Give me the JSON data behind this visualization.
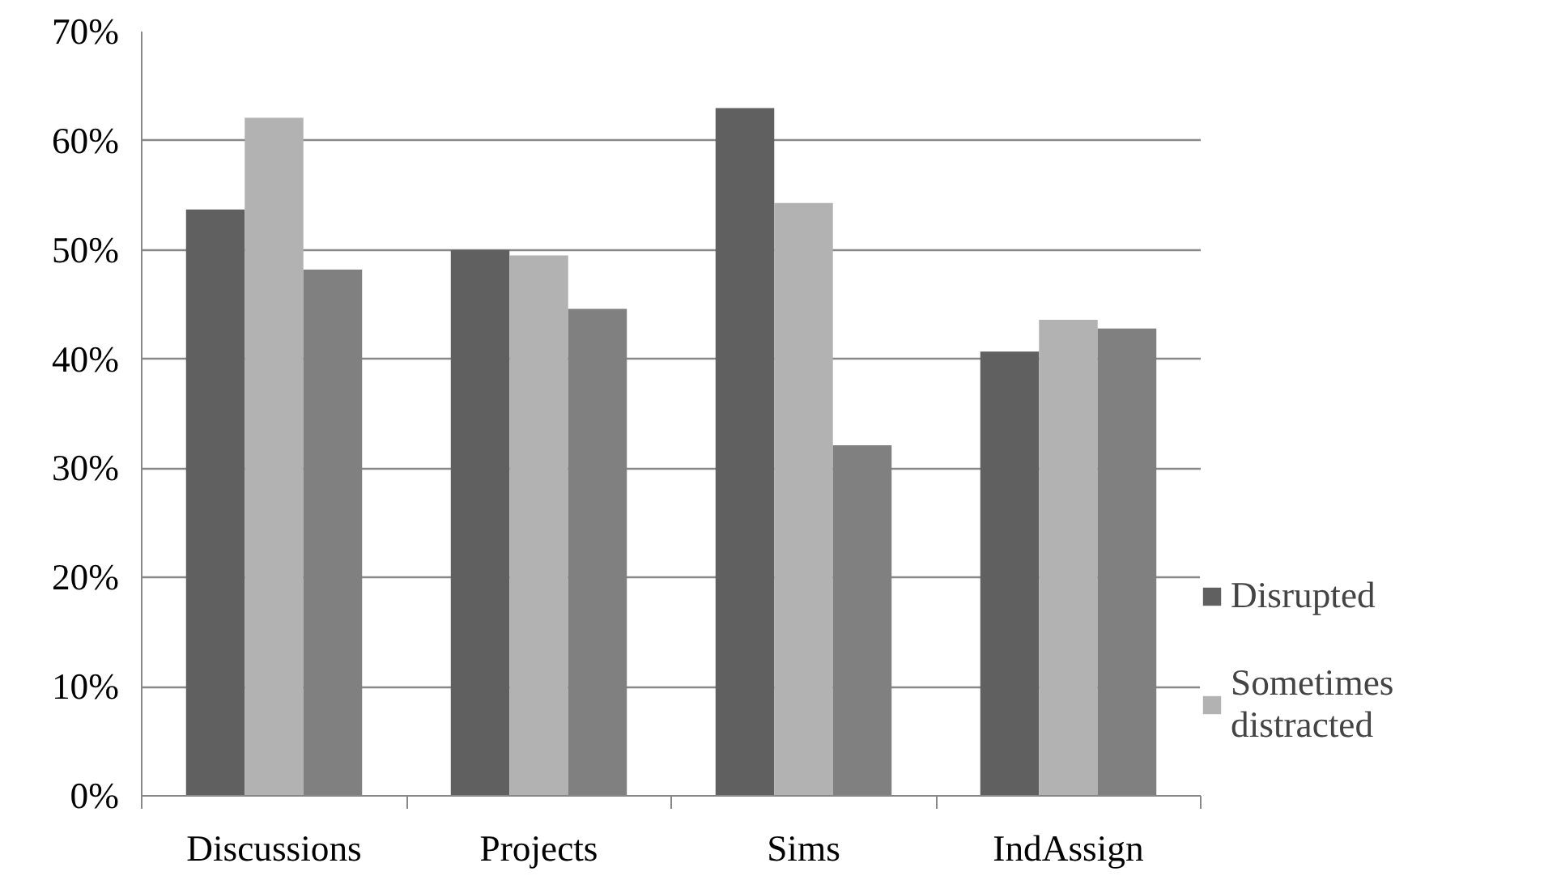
{
  "chart_data": {
    "type": "bar",
    "categories": [
      "Discussions",
      "Projects",
      "Sims",
      "IndAssign"
    ],
    "series": [
      {
        "name": "Disrupted",
        "color": "#606060",
        "values": [
          53.7,
          50.0,
          63.0,
          40.7
        ]
      },
      {
        "name": "Sometimes distracted",
        "color": "#b2b2b2",
        "values": [
          62.1,
          49.5,
          54.3,
          43.6
        ]
      },
      {
        "color": "#808080",
        "values": [
          48.2,
          44.6,
          32.1,
          42.8
        ]
      }
    ],
    "ylim": [
      0,
      70
    ],
    "yticks": [
      {
        "value": 0,
        "label": "0%"
      },
      {
        "value": 10,
        "label": "10%"
      },
      {
        "value": 20,
        "label": "20%"
      },
      {
        "value": 30,
        "label": "30%"
      },
      {
        "value": 40,
        "label": "40%"
      },
      {
        "value": 50,
        "label": "50%"
      },
      {
        "value": 60,
        "label": "60%"
      },
      {
        "value": 70,
        "label": "70%"
      }
    ],
    "grid": "y",
    "legend": "right"
  }
}
